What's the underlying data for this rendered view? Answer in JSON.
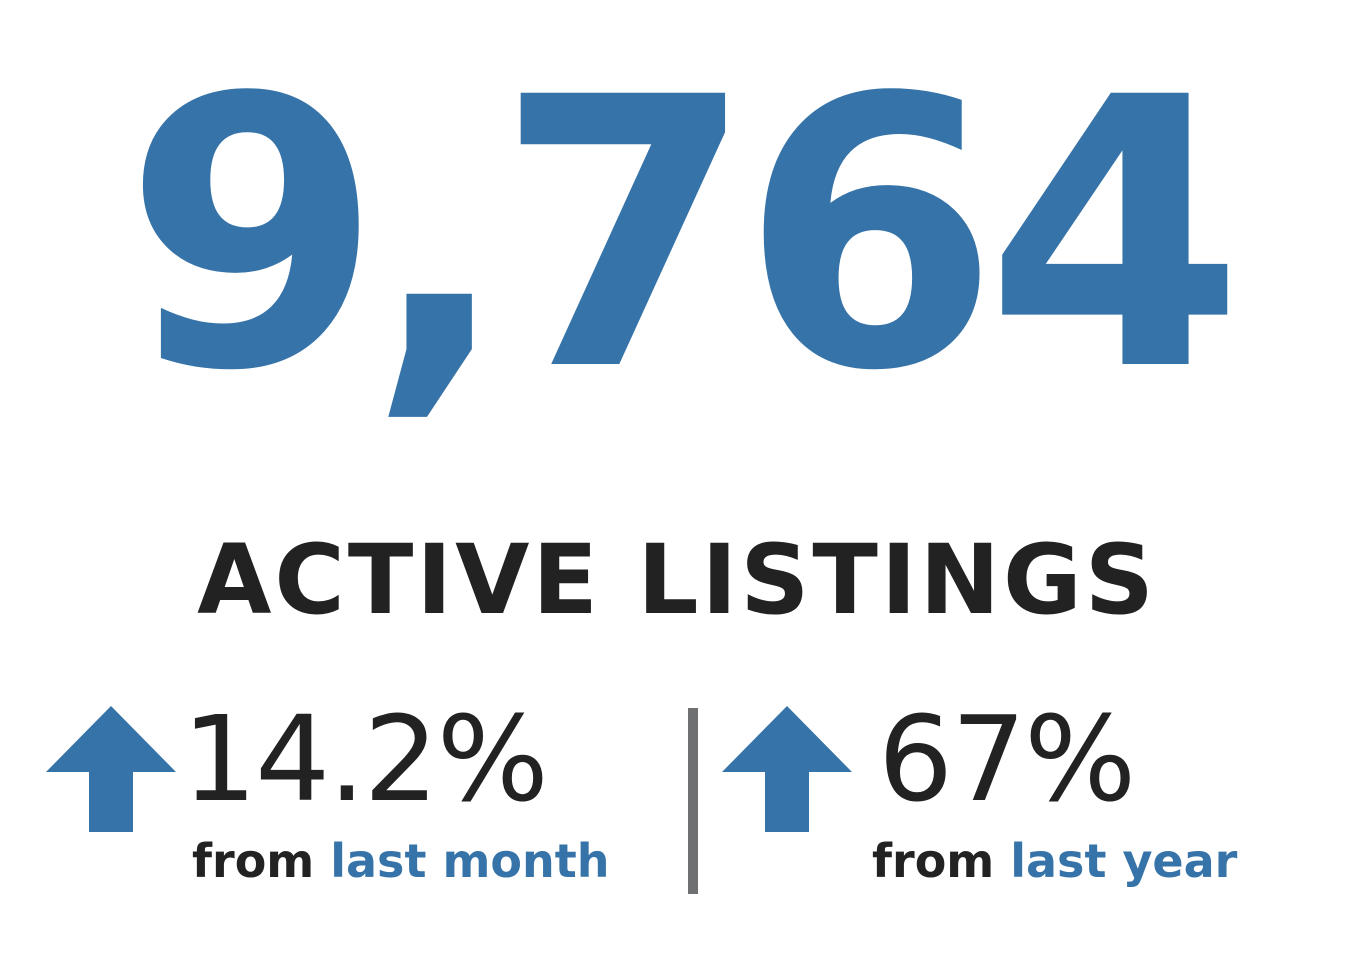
{
  "headline": {
    "value": "9,764",
    "label": "ACTIVE LISTINGS"
  },
  "stats": [
    {
      "change": "14.2%",
      "from": "from",
      "period": "last month",
      "direction": "up-arrow-icon"
    },
    {
      "change": "67%",
      "from": "from",
      "period": "last year",
      "direction": "up-arrow-icon"
    }
  ],
  "colors": {
    "accent": "#3673a8",
    "text": "#222222",
    "divider": "#6e7072"
  }
}
